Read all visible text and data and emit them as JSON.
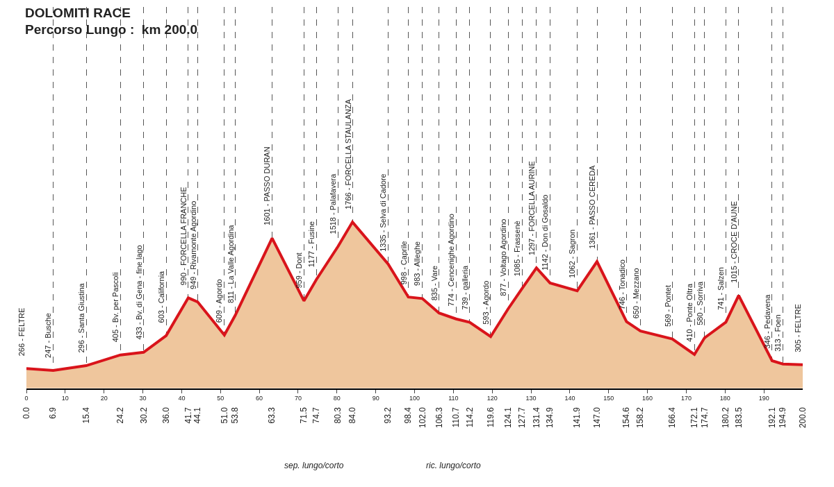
{
  "chart_data": {
    "type": "area",
    "title": "DOLOMITI RACE",
    "subtitle": "Percorso Lungo :  km 200.0",
    "x": [
      0,
      6.9,
      15.4,
      24.2,
      30.2,
      36.0,
      41.7,
      44.1,
      51.0,
      53.8,
      63.3,
      71.5,
      74.7,
      80.3,
      84.0,
      93.2,
      98.4,
      102.0,
      106.3,
      110.7,
      114.2,
      119.6,
      124.1,
      127.7,
      131.4,
      134.9,
      141.9,
      147.0,
      154.6,
      158.2,
      166.4,
      172.1,
      174.7,
      180.2,
      183.5,
      192.1,
      194.9,
      200.0
    ],
    "series": [
      {
        "color": "#d9141b",
        "values": [
          266,
          247,
          296,
          405,
          433,
          603,
          990,
          949,
          609,
          811,
          1601,
          959,
          1177,
          1518,
          1766,
          1335,
          998,
          983,
          835,
          774,
          739,
          593,
          877,
          1085,
          1297,
          1142,
          1062,
          1361,
          746,
          650,
          569,
          410,
          580,
          741,
          1015,
          346,
          313,
          305
        ],
        "value_labels": [
          "266 - FELTRE",
          "247 - Busche",
          "296 - Santa Giustina",
          "405 - Bv. per Pascoli",
          "433 - Bv. di Gena - fine lago",
          "603 - California",
          "990 - FORCELLA FRANCHE",
          "949 - Rivamonte Agordino",
          "609 - Agordo",
          "811 - La Valle Agordina",
          "1601 - PASSO DURAN",
          "959 - Dont",
          "1177 - Fusine",
          "1518 - Palafavera",
          "1766 - FORCELLA STAULANZA",
          "1335 - Selva di Cadore",
          "998 - Caprile",
          "983 - Alleghe",
          "835 - Vare",
          "774 - Cencenighe Agordino",
          "739 - galleria",
          "593 - Agordo",
          "877 - Voltago Agordino",
          "1085 - Frassenè",
          "1297 - FORCELLA AURINE",
          "1142 - Don di Gosaldo",
          "1062 - Sagron",
          "1361 - PASSO CEREDA",
          "746 - Tonadico",
          "650 - Mezzano",
          "569 - Pontet",
          "410 - Ponte Oltra",
          "580 - Sorriva",
          "741 - Salzen",
          "1015 - CROCE D'AUNE",
          "346 - Pedavena",
          "313 - Foen",
          "305 - FELTRE"
        ]
      }
    ],
    "xlim": [
      0,
      200
    ],
    "xticks": [
      0,
      10,
      20,
      30,
      40,
      50,
      60,
      70,
      80,
      90,
      100,
      110,
      120,
      130,
      140,
      150,
      160,
      170,
      180,
      190
    ],
    "x2lim": [
      0,
      200
    ],
    "x2ticks": [
      {
        "value": 0,
        "label": "0.0"
      },
      6.9,
      15.4,
      24.2,
      30.2,
      {
        "value": 36,
        "label": "36.0"
      },
      41.7,
      44.1,
      {
        "value": 51,
        "label": "51.0"
      },
      53.8,
      63.3,
      71.5,
      74.7,
      80.3,
      {
        "value": 84,
        "label": "84.0"
      },
      93.2,
      98.4,
      {
        "value": 102,
        "label": "102.0"
      },
      106.3,
      110.7,
      114.2,
      119.6,
      124.1,
      127.7,
      131.4,
      134.9,
      141.9,
      {
        "value": 147,
        "label": "147.0"
      },
      154.6,
      158.2,
      166.4,
      172.1,
      174.7,
      180.2,
      183.5,
      192.1,
      194.9,
      {
        "value": 200,
        "label": "200.0"
      }
    ],
    "grid": "x",
    "annotations": [
      "sep. lungo/corto",
      "ric. lungo/corto"
    ]
  }
}
